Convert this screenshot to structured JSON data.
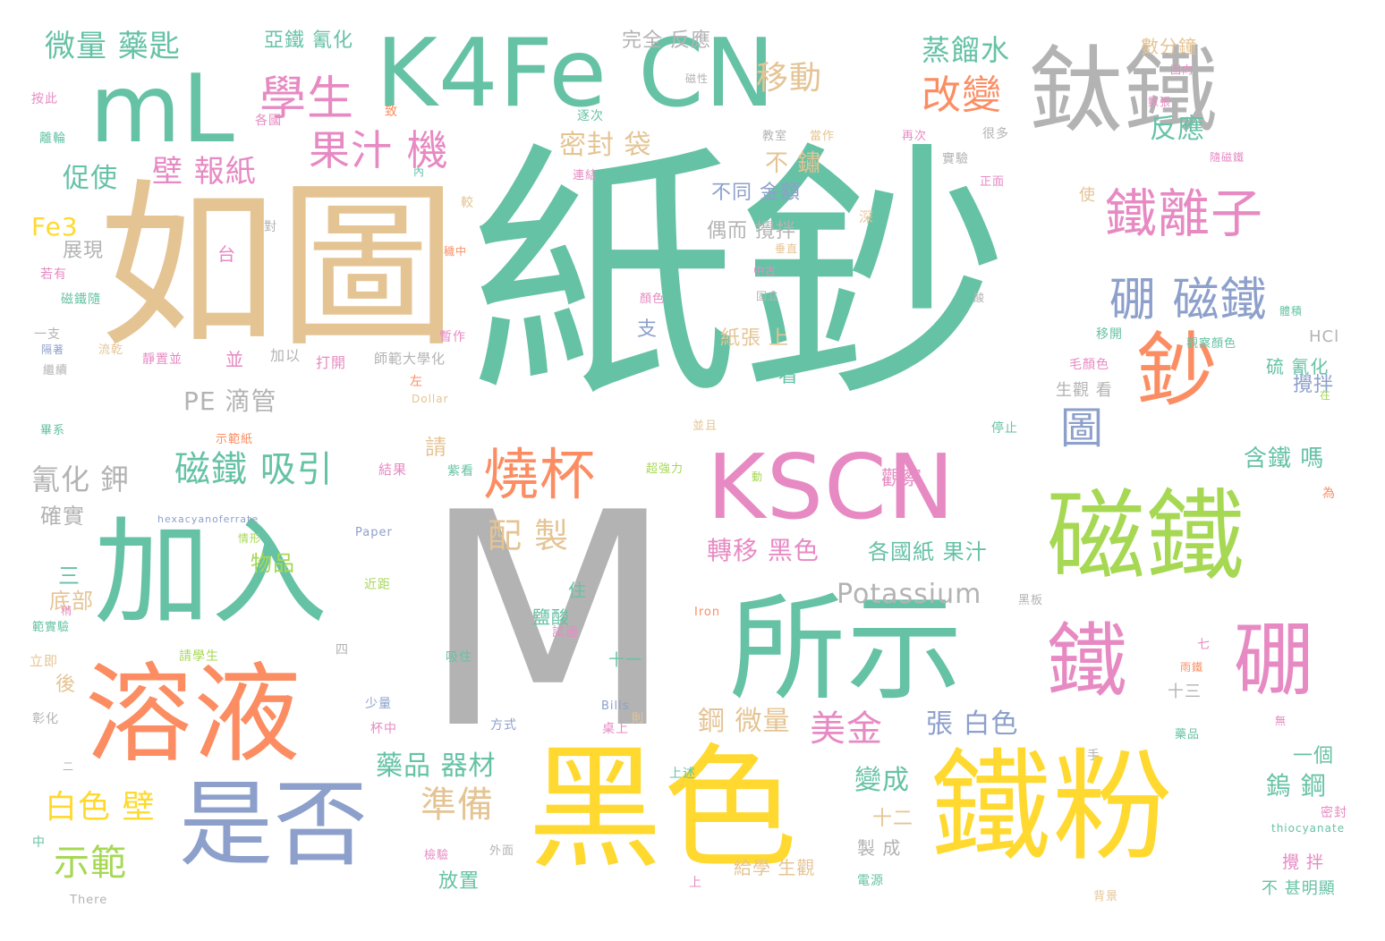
{
  "palette": {
    "teal": "#66c2a5",
    "orange": "#fc8d62",
    "blue": "#8da0cb",
    "pink": "#e78ac3",
    "green": "#a6d854",
    "yellow": "#ffd92f",
    "tan": "#e5c494",
    "gray": "#b3b3b3"
  },
  "words": [
    "紙鈔",
    "M",
    "如圖",
    "黑色",
    "鐵粉",
    "所示",
    "加入",
    "溶液",
    "是否",
    "mL",
    "K4Fe CN",
    "鈦鐵",
    "磁鐵",
    "KSCN",
    "鐵",
    "硼",
    "鈔",
    "燒杯",
    "鐵離子",
    "硼 磁鐵",
    "學生",
    "果汁 機",
    "改變",
    "圖",
    "移動",
    "磁鐵 吸引",
    "準備",
    "示範",
    "美金",
    "配 製",
    "白色 壁",
    "Potassium",
    "壁 報紙",
    "氰化 鉀",
    "PE 滴管",
    "密封 袋",
    "微量 藥匙",
    "蒸餾水",
    "促使",
    "反應",
    "張 白色",
    "鎢 鋼",
    "變成",
    "鋼 微量",
    "轉移 黑色",
    "Fe3",
    "各國紙 果汁",
    "藥品 器材",
    "不 鏽",
    "含鐵 嗎",
    "確實",
    "底部",
    "物品",
    "紙張 上",
    "亞鐵 氰化",
    "完全 反應",
    "數分鐘",
    "展現",
    "不同 金額",
    "偶而 攪拌",
    "攪拌",
    "一個",
    "放置",
    "觀察",
    "十二",
    "製 成",
    "給學 生觀",
    "硫 氰化",
    "HCl",
    "生觀 看",
    "鹽酸",
    "十一",
    "十三",
    "不 甚明顯",
    "請",
    "三",
    "後",
    "住",
    "看",
    "並",
    "支",
    "加以",
    "打開",
    "師範大學化",
    "一支",
    "立即",
    "彰化",
    "中",
    "上",
    "上述",
    "外面",
    "電源",
    "背景",
    "thiocyanate",
    "There",
    "Bills",
    "Paper",
    "Iron",
    "hexacyanoferrate",
    "Dollar",
    "教室",
    "當作",
    "再次",
    "很多",
    "實驗",
    "正面",
    "連結",
    "逐次",
    "磁性",
    "固向",
    "數張",
    "隨磁鐵",
    "使",
    "深",
    "台",
    "對",
    "若有",
    "磁鐵隨",
    "繼續",
    "按此",
    "離輪",
    "各國",
    "致",
    "內",
    "較",
    "暫作",
    "移開",
    "毛顏色",
    "觀察顏色",
    "體積",
    "停止",
    "結果",
    "情形",
    "近距",
    "試過",
    "吸住",
    "黑板",
    "請學生",
    "少量",
    "杯中",
    "方式",
    "桌上",
    "則",
    "手",
    "密封",
    "攪 拌",
    "藥品",
    "為",
    "七",
    "雨鐵",
    "超強力",
    "紫看",
    "動",
    "並且",
    "靜置並",
    "示範紙",
    "範實驗",
    "隔著",
    "流乾",
    "左",
    "畢系",
    "固立",
    "中古",
    "垂直",
    "酸",
    "穢中",
    "顏色",
    "四",
    "二",
    "Ⅱ",
    "檢驗",
    "稍",
    "在",
    "無"
  ]
}
